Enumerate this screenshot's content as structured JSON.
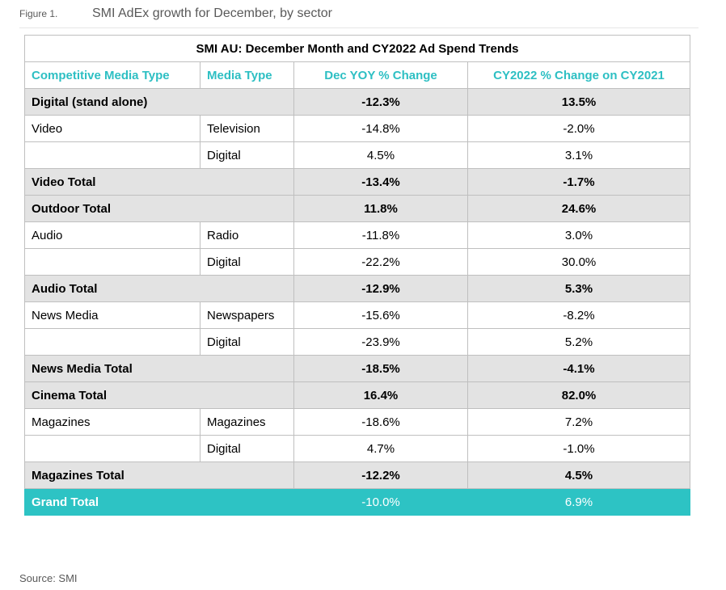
{
  "caption": {
    "figure_label": "Figure 1.",
    "title": "SMI AdEx growth for December, by sector"
  },
  "table": {
    "title": "SMI AU: December Month and CY2022 Ad Spend Trends",
    "headers": [
      "Competitive Media Type",
      "Media Type",
      "Dec YOY % Change",
      "CY2022 % Change on CY2021"
    ],
    "rows": [
      {
        "kind": "total",
        "label": "Digital (stand alone)",
        "dec": "-12.3%",
        "cy": "13.5%"
      },
      {
        "kind": "detail",
        "competitive": "Video",
        "media": "Television",
        "dec": "-14.8%",
        "cy": "-2.0%"
      },
      {
        "kind": "detail",
        "competitive": "",
        "media": "Digital",
        "dec": "4.5%",
        "cy": "3.1%"
      },
      {
        "kind": "total",
        "label": "Video Total",
        "dec": "-13.4%",
        "cy": "-1.7%"
      },
      {
        "kind": "total",
        "label": "Outdoor Total",
        "dec": "11.8%",
        "cy": "24.6%"
      },
      {
        "kind": "detail",
        "competitive": "Audio",
        "media": "Radio",
        "dec": "-11.8%",
        "cy": "3.0%"
      },
      {
        "kind": "detail",
        "competitive": "",
        "media": "Digital",
        "dec": "-22.2%",
        "cy": "30.0%"
      },
      {
        "kind": "total",
        "label": "Audio Total",
        "dec": "-12.9%",
        "cy": "5.3%"
      },
      {
        "kind": "detail",
        "competitive": "News Media",
        "media": "Newspapers",
        "dec": "-15.6%",
        "cy": "-8.2%"
      },
      {
        "kind": "detail",
        "competitive": "",
        "media": "Digital",
        "dec": "-23.9%",
        "cy": "5.2%"
      },
      {
        "kind": "total",
        "label": "News Media Total",
        "dec": "-18.5%",
        "cy": "-4.1%"
      },
      {
        "kind": "total",
        "label": "Cinema Total",
        "dec": "16.4%",
        "cy": "82.0%"
      },
      {
        "kind": "detail",
        "competitive": "Magazines",
        "media": "Magazines",
        "dec": "-18.6%",
        "cy": "7.2%"
      },
      {
        "kind": "detail",
        "competitive": "",
        "media": "Digital",
        "dec": "4.7%",
        "cy": "-1.0%"
      },
      {
        "kind": "total",
        "label": "Magazines Total",
        "dec": "-12.2%",
        "cy": "4.5%"
      },
      {
        "kind": "grand",
        "label": "Grand Total",
        "dec": "-10.0%",
        "cy": "6.9%"
      }
    ]
  },
  "source": "Source: SMI",
  "colors": {
    "accent": "#2dc3c4",
    "total_row_bg": "#e3e3e3",
    "border": "#bfbfbf",
    "caption_text": "#595959"
  }
}
